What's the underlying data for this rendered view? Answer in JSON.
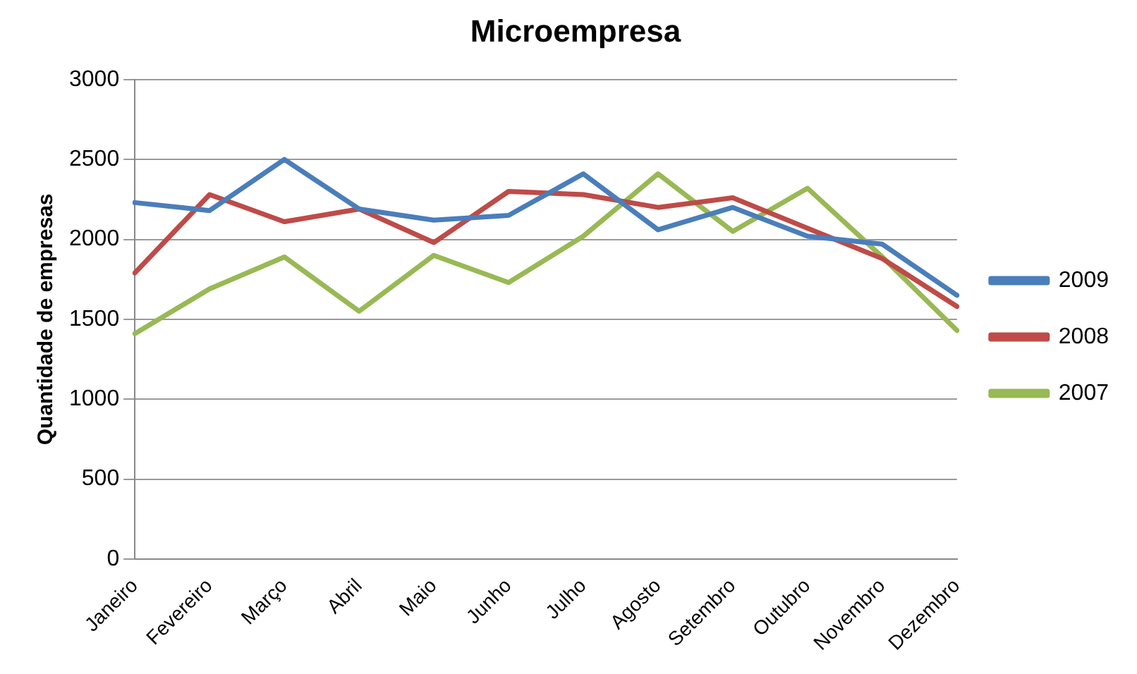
{
  "chart_data": {
    "type": "line",
    "title": "Microempresa",
    "ylabel": "Quantidade de empresas",
    "categories": [
      "Janeiro",
      "Fevereiro",
      "Março",
      "Abril",
      "Maio",
      "Junho",
      "Julho",
      "Agosto",
      "Setembro",
      "Outubro",
      "Novembro",
      "Dezembro"
    ],
    "series": [
      {
        "name": "2009",
        "color": "#4a7ebb",
        "values": [
          2230,
          2180,
          2500,
          2190,
          2120,
          2150,
          2410,
          2060,
          2200,
          2020,
          1970,
          1650
        ]
      },
      {
        "name": "2008",
        "color": "#be4b48",
        "values": [
          1790,
          2280,
          2110,
          2190,
          1980,
          2300,
          2280,
          2200,
          2260,
          2070,
          1880,
          1580
        ]
      },
      {
        "name": "2007",
        "color": "#98b954",
        "values": [
          1410,
          1690,
          1890,
          1550,
          1900,
          1730,
          2020,
          2410,
          2050,
          2320,
          1890,
          1430
        ]
      }
    ],
    "ylim": [
      0,
      3000
    ],
    "yticks": [
      0,
      500,
      1000,
      1500,
      2000,
      2500,
      3000
    ],
    "grid": "y",
    "legend": "right",
    "marker": "none",
    "line_style": "solid"
  }
}
